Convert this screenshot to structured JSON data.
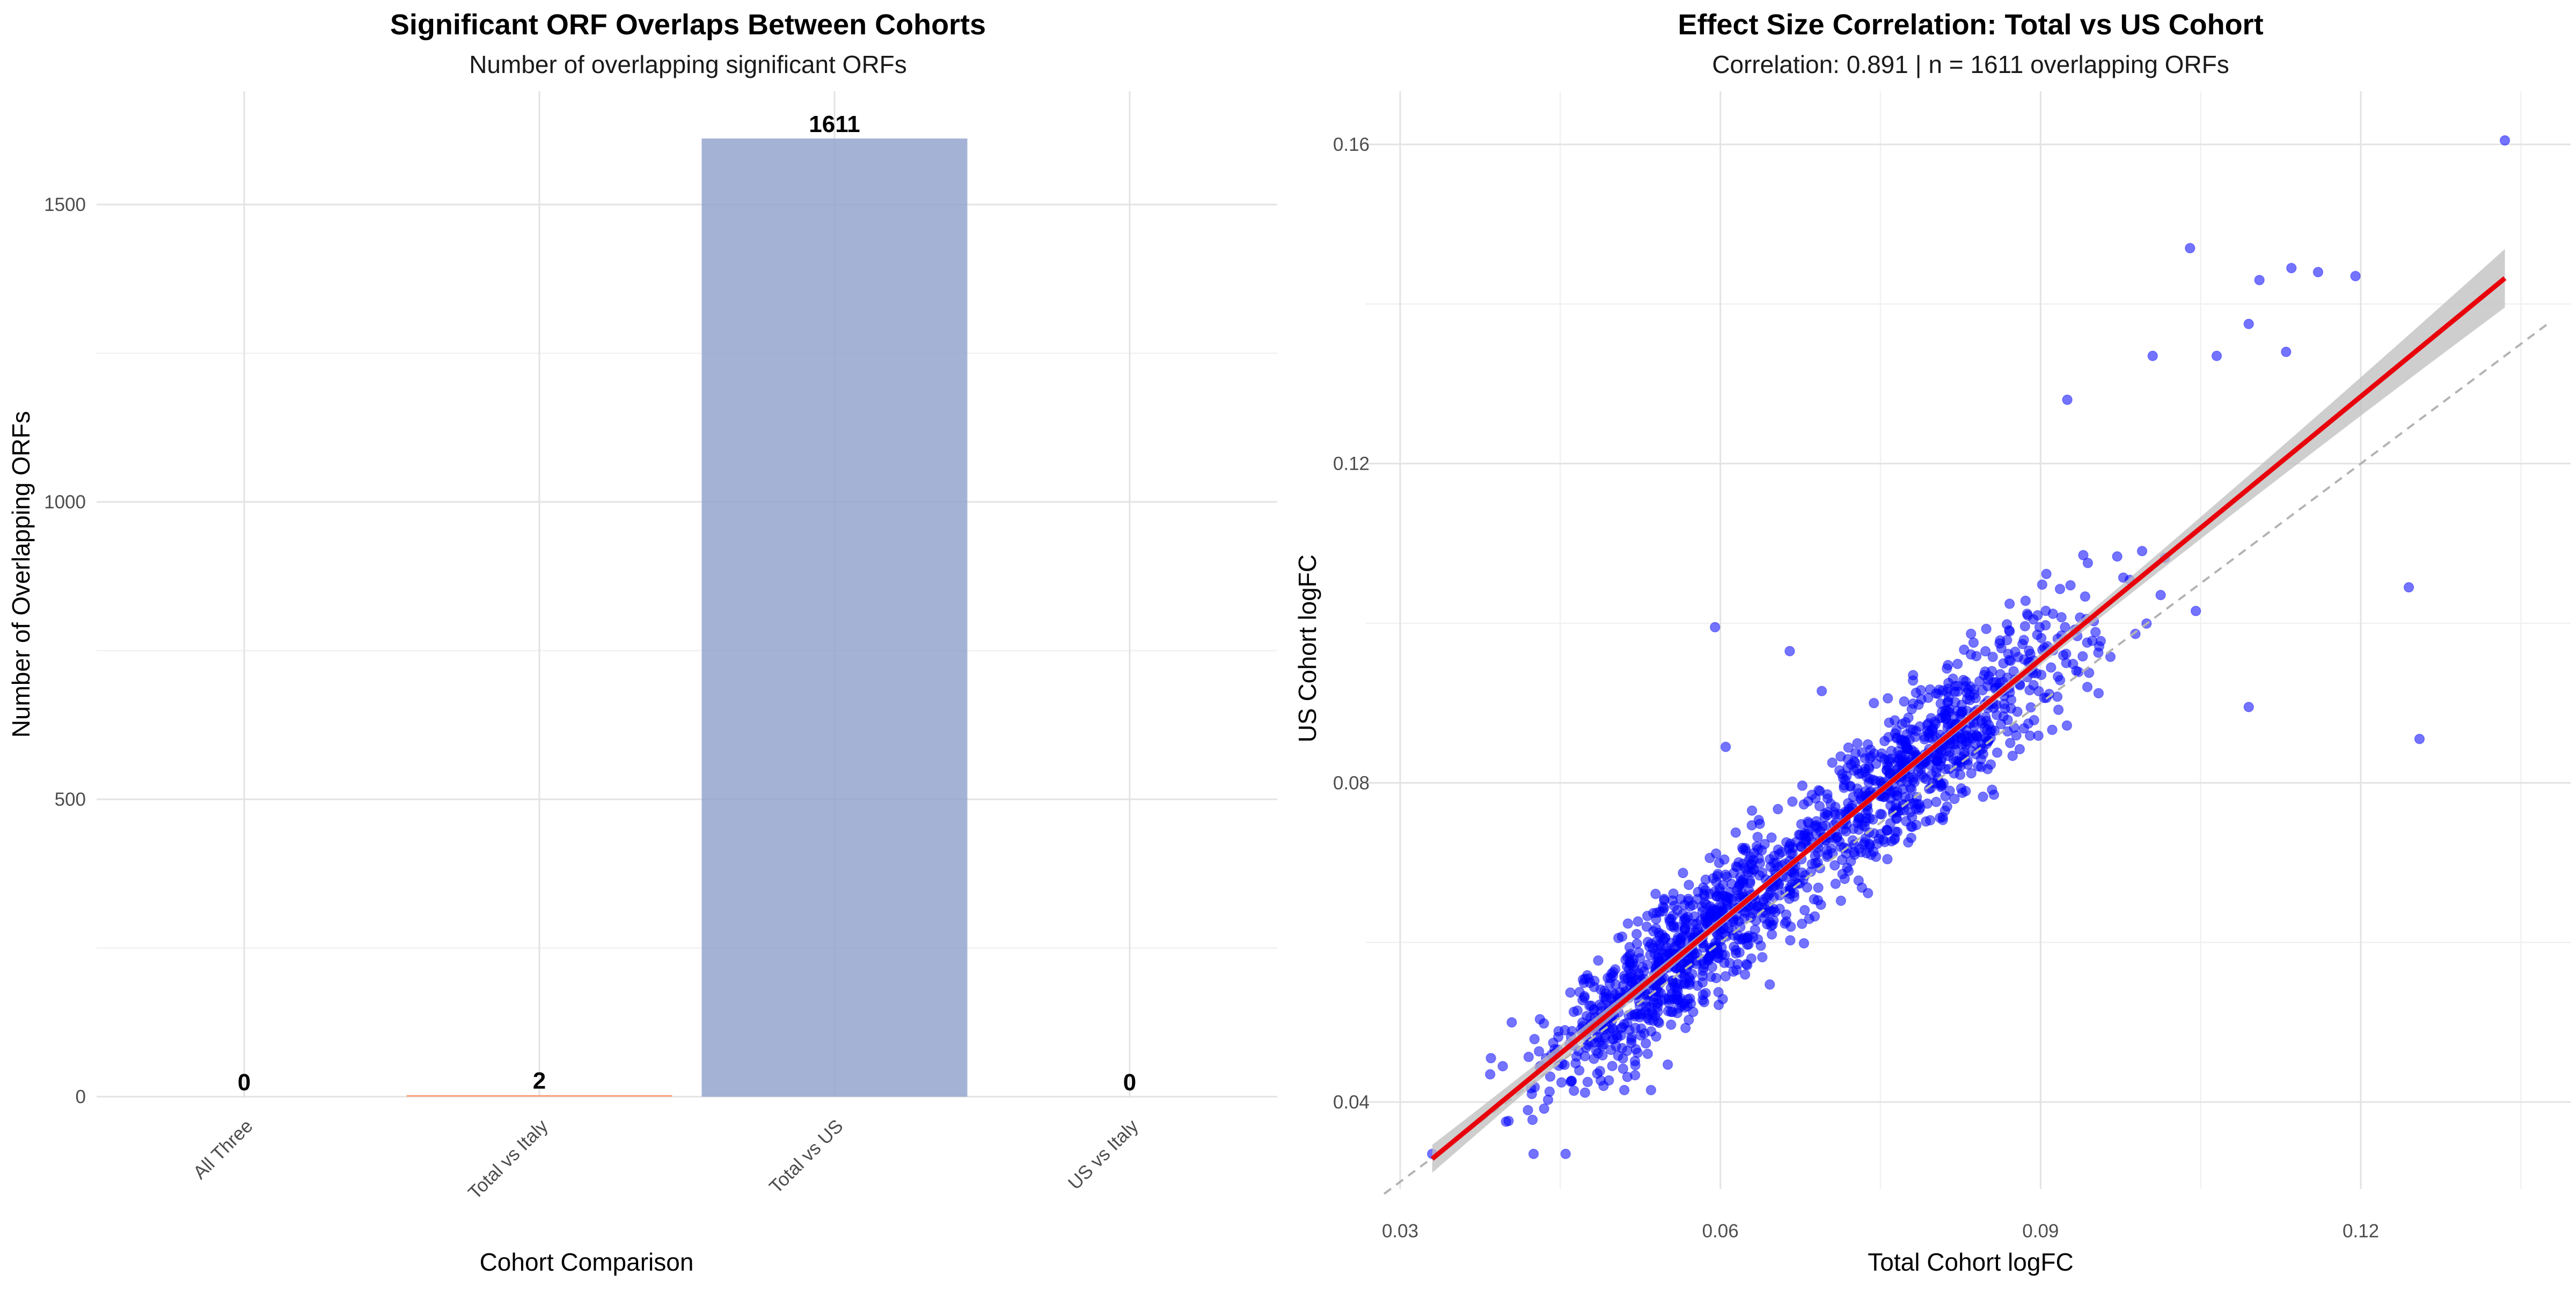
{
  "chart_data": [
    {
      "type": "bar",
      "title": "Significant ORF Overlaps Between Cohorts",
      "subtitle": "Number of overlapping significant ORFs",
      "xlabel": "Cohort Comparison",
      "ylabel": "Number of Overlapping ORFs",
      "categories": [
        "All Three",
        "Total vs Italy",
        "Total vs US",
        "US vs Italy"
      ],
      "values": [
        0,
        2,
        1611,
        0
      ],
      "value_labels": [
        "0",
        "2",
        "1611",
        "0"
      ],
      "bar_colors": [
        "#66c2a5",
        "#fc8d62",
        "#8da0cb",
        "#e78ac3"
      ],
      "ylim": [
        0,
        1611
      ],
      "yticks": [
        0,
        500,
        1000,
        1500
      ],
      "ytick_labels": [
        "0",
        "500",
        "1000",
        "1500"
      ],
      "grid": true,
      "legend": "none"
    },
    {
      "type": "scatter",
      "title": "Effect Size Correlation: Total vs US Cohort",
      "subtitle": "Correlation: 0.891 | n = 1611 overlapping ORFs",
      "xlabel": "Total Cohort logFC",
      "ylabel": "US Cohort logFC",
      "n_points": 1611,
      "correlation": 0.891,
      "xlim": [
        0.0285,
        0.1375
      ],
      "ylim": [
        0.0275,
        0.1655
      ],
      "xticks": [
        0.03,
        0.06,
        0.09,
        0.12
      ],
      "xtick_labels": [
        "0.03",
        "0.06",
        "0.09",
        "0.12"
      ],
      "yticks": [
        0.04,
        0.08,
        0.12,
        0.16
      ],
      "ytick_labels": [
        "0.04",
        "0.08",
        "0.12",
        "0.16"
      ],
      "point_color": "#0000ff",
      "regression_line": {
        "slope": 1.098,
        "intercept": -0.00335,
        "x_range": [
          0.033,
          0.1335
        ],
        "color": "#e8000b",
        "ci_color": "#bdbdbd"
      },
      "identity_line": {
        "slope": 1,
        "intercept": 0,
        "color": "#b3b3b3"
      },
      "highlighted_points": [
        [
          0.1335,
          0.1605
        ],
        [
          0.104,
          0.147
        ],
        [
          0.1135,
          0.1445
        ],
        [
          0.116,
          0.144
        ],
        [
          0.1105,
          0.143
        ],
        [
          0.1195,
          0.1435
        ],
        [
          0.1095,
          0.1375
        ],
        [
          0.113,
          0.134
        ],
        [
          0.1005,
          0.1335
        ],
        [
          0.1065,
          0.1335
        ],
        [
          0.1245,
          0.1045
        ],
        [
          0.1255,
          0.0855
        ],
        [
          0.1095,
          0.0895
        ],
        [
          0.0925,
          0.128
        ],
        [
          0.0595,
          0.0995
        ],
        [
          0.0665,
          0.0965
        ],
        [
          0.0695,
          0.0915
        ],
        [
          0.0605,
          0.0845
        ],
        [
          0.051,
          0.0415
        ],
        [
          0.0535,
          0.0415
        ],
        [
          0.033,
          0.0335
        ],
        [
          0.0425,
          0.0335
        ],
        [
          0.0455,
          0.0335
        ],
        [
          0.0385,
          0.0455
        ]
      ],
      "grid": true,
      "legend": "none"
    }
  ]
}
